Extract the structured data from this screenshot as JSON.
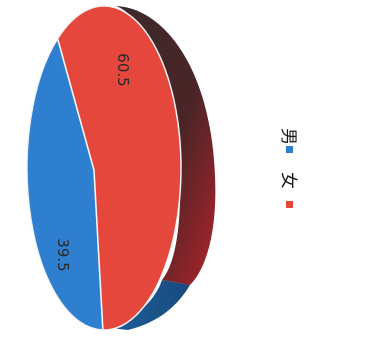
{
  "chart_data": {
    "type": "pie",
    "title": "",
    "categories": [
      "男",
      "女"
    ],
    "values": [
      39.5,
      60.5
    ],
    "colors": [
      "#2f7fd0",
      "#e5473d"
    ],
    "data_labels": [
      "39.5",
      "60.5"
    ],
    "legend": {
      "placement": "right",
      "entries": [
        "男",
        "女"
      ]
    },
    "style": "3d-tilted, rotated 90 degrees"
  }
}
